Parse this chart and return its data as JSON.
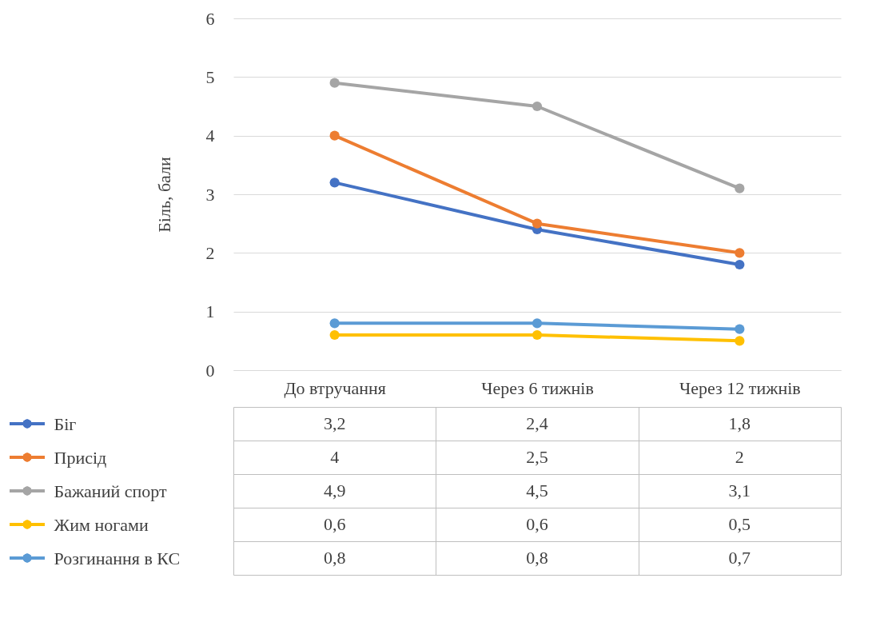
{
  "chart_data": {
    "type": "line",
    "ylabel": "Біль, бали",
    "categories": [
      "До втручання",
      "Через 6 тижнів",
      "Через 12 тижнів"
    ],
    "series": [
      {
        "name": "Біг",
        "color": "#4472c4",
        "values": [
          3.2,
          2.4,
          1.8
        ],
        "value_labels": [
          "3,2",
          "2,4",
          "1,8"
        ]
      },
      {
        "name": "Присід",
        "color": "#ed7d31",
        "values": [
          4,
          2.5,
          2
        ],
        "value_labels": [
          "4",
          "2,5",
          "2"
        ]
      },
      {
        "name": "Бажаний спорт",
        "color": "#a5a5a5",
        "values": [
          4.9,
          4.5,
          3.1
        ],
        "value_labels": [
          "4,9",
          "4,5",
          "3,1"
        ]
      },
      {
        "name": "Жим ногами",
        "color": "#ffc000",
        "values": [
          0.6,
          0.6,
          0.5
        ],
        "value_labels": [
          "0,6",
          "0,6",
          "0,5"
        ]
      },
      {
        "name": "Розгинання в КС",
        "color": "#5b9bd5",
        "values": [
          0.8,
          0.8,
          0.7
        ],
        "value_labels": [
          "0,8",
          "0,8",
          "0,7"
        ]
      }
    ],
    "ylim": [
      0,
      6
    ],
    "yticks": [
      0,
      1,
      2,
      3,
      4,
      5,
      6
    ],
    "grid": "y",
    "marker": "circle",
    "line_style": "solid",
    "legend": "bottom"
  }
}
